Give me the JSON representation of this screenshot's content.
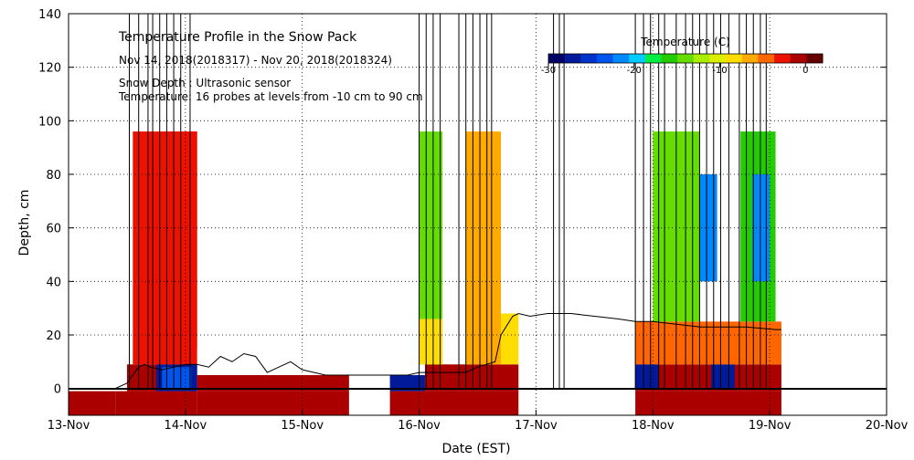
{
  "chart_data": {
    "type": "heatmap",
    "title": "Temperature Profile in the Snow Pack",
    "subtitle": "Nov 14, 2018(2018317) - Nov 20, 2018(2018324)",
    "notes": [
      "Snow Depth : Ultrasonic sensor",
      "Temperature: 16 probes at levels from -10 cm to 90 cm"
    ],
    "xlabel": "Date (EST)",
    "ylabel": "Depth, cm",
    "x_ticks": [
      "13-Nov",
      "14-Nov",
      "15-Nov",
      "16-Nov",
      "17-Nov",
      "18-Nov",
      "19-Nov",
      "20-Nov"
    ],
    "xlim_days": [
      0,
      7
    ],
    "ylim": [
      -10,
      140
    ],
    "y_ticks": [
      0,
      20,
      40,
      60,
      80,
      100,
      120,
      140
    ],
    "grid": true,
    "colorbar": {
      "label": "Temperature (C)",
      "range": [
        -30,
        2
      ],
      "ticks": [
        -30,
        -20,
        -10,
        0
      ],
      "colors": [
        "#000066",
        "#001a99",
        "#0033cc",
        "#0055ee",
        "#0088ff",
        "#00ccff",
        "#00ee44",
        "#22cc00",
        "#66dd00",
        "#aaee00",
        "#ddee00",
        "#ffdd00",
        "#ffaa00",
        "#ff6600",
        "#ee1100",
        "#aa0000",
        "#660000"
      ]
    },
    "snow_depth_cm": [
      [
        0.0,
        0
      ],
      [
        0.4,
        0
      ],
      [
        0.5,
        2
      ],
      [
        0.55,
        5
      ],
      [
        0.6,
        8
      ],
      [
        0.65,
        9
      ],
      [
        0.7,
        8
      ],
      [
        0.8,
        7
      ],
      [
        0.9,
        8
      ],
      [
        1.0,
        9
      ],
      [
        1.1,
        9
      ],
      [
        1.2,
        8
      ],
      [
        1.3,
        12
      ],
      [
        1.4,
        10
      ],
      [
        1.5,
        13
      ],
      [
        1.6,
        12
      ],
      [
        1.7,
        6
      ],
      [
        1.8,
        8
      ],
      [
        1.9,
        10
      ],
      [
        2.0,
        7
      ],
      [
        2.2,
        5
      ],
      [
        2.5,
        5
      ],
      [
        2.75,
        5
      ],
      [
        2.9,
        5
      ],
      [
        3.0,
        6
      ],
      [
        3.2,
        6
      ],
      [
        3.4,
        6
      ],
      [
        3.5,
        8
      ],
      [
        3.65,
        10
      ],
      [
        3.7,
        20
      ],
      [
        3.8,
        27
      ],
      [
        3.85,
        28
      ],
      [
        3.95,
        27
      ],
      [
        4.1,
        28
      ],
      [
        4.3,
        28
      ],
      [
        4.5,
        27
      ],
      [
        4.7,
        26
      ],
      [
        4.85,
        25
      ],
      [
        5.0,
        25
      ],
      [
        5.2,
        24
      ],
      [
        5.4,
        23
      ],
      [
        5.6,
        23
      ],
      [
        5.8,
        23
      ],
      [
        6.05,
        22
      ],
      [
        6.1,
        22
      ]
    ],
    "temperature_blocks": [
      {
        "t0": 0.0,
        "t1": 0.4,
        "d0": -10,
        "d1": -1,
        "temp": -1
      },
      {
        "t0": 0.4,
        "t1": 1.1,
        "d0": -10,
        "d1": -1,
        "temp": -1
      },
      {
        "t0": 0.5,
        "t1": 1.1,
        "d0": -1,
        "d1": 9,
        "temp": 0
      },
      {
        "t0": 0.75,
        "t1": 1.1,
        "d0": -1,
        "d1": 9,
        "temp": -28
      },
      {
        "t0": 0.8,
        "t1": 1.05,
        "d0": 0,
        "d1": 8,
        "temp": -24
      },
      {
        "t0": 0.55,
        "t1": 1.1,
        "d0": 9,
        "d1": 96,
        "temp": -2
      },
      {
        "t0": 0.8,
        "t1": 1.1,
        "d0": 15,
        "d1": 96,
        "temp": -3
      },
      {
        "t0": 1.1,
        "t1": 2.4,
        "d0": -10,
        "d1": -1,
        "temp": -1
      },
      {
        "t0": 1.1,
        "t1": 2.4,
        "d0": -1,
        "d1": 5,
        "temp": 0
      },
      {
        "t0": 2.75,
        "t1": 3.05,
        "d0": -1,
        "d1": 5,
        "temp": -28
      },
      {
        "t0": 2.75,
        "t1": 3.85,
        "d0": -10,
        "d1": -1,
        "temp": -1
      },
      {
        "t0": 3.05,
        "t1": 3.85,
        "d0": -1,
        "d1": 9,
        "temp": 0
      },
      {
        "t0": 3.0,
        "t1": 3.2,
        "d0": 9,
        "d1": 96,
        "temp": -15
      },
      {
        "t0": 3.0,
        "t1": 3.2,
        "d0": 9,
        "d1": 26,
        "temp": -8
      },
      {
        "t0": 3.4,
        "t1": 3.7,
        "d0": 9,
        "d1": 96,
        "temp": -6
      },
      {
        "t0": 3.7,
        "t1": 3.85,
        "d0": 9,
        "d1": 28,
        "temp": -8
      },
      {
        "t0": 4.85,
        "t1": 6.1,
        "d0": -10,
        "d1": -1,
        "temp": -1
      },
      {
        "t0": 4.85,
        "t1": 6.1,
        "d0": -1,
        "d1": 9,
        "temp": 0
      },
      {
        "t0": 4.85,
        "t1": 5.05,
        "d0": 0,
        "d1": 9,
        "temp": -28
      },
      {
        "t0": 5.5,
        "t1": 5.7,
        "d0": 0,
        "d1": 9,
        "temp": -28
      },
      {
        "t0": 4.85,
        "t1": 6.1,
        "d0": 9,
        "d1": 25,
        "temp": -5
      },
      {
        "t0": 5.0,
        "t1": 5.4,
        "d0": 25,
        "d1": 96,
        "temp": -14
      },
      {
        "t0": 5.4,
        "t1": 5.55,
        "d0": 40,
        "d1": 80,
        "temp": -22
      },
      {
        "t0": 5.75,
        "t1": 6.05,
        "d0": 25,
        "d1": 96,
        "temp": -16
      },
      {
        "t0": 5.85,
        "t1": 6.0,
        "d0": 40,
        "d1": 80,
        "temp": -22
      }
    ],
    "spikes": [
      0.52,
      0.6,
      0.68,
      0.72,
      0.78,
      0.84,
      0.9,
      0.96,
      1.04,
      3.0,
      3.06,
      3.12,
      3.18,
      3.34,
      3.4,
      3.46,
      3.52,
      3.58,
      3.62,
      4.15,
      4.2,
      4.24,
      4.85,
      4.92,
      4.98,
      5.05,
      5.1,
      5.2,
      5.28,
      5.34,
      5.4,
      5.46,
      5.52,
      5.58,
      5.65,
      5.74,
      5.8,
      5.86,
      5.92,
      5.97
    ]
  }
}
